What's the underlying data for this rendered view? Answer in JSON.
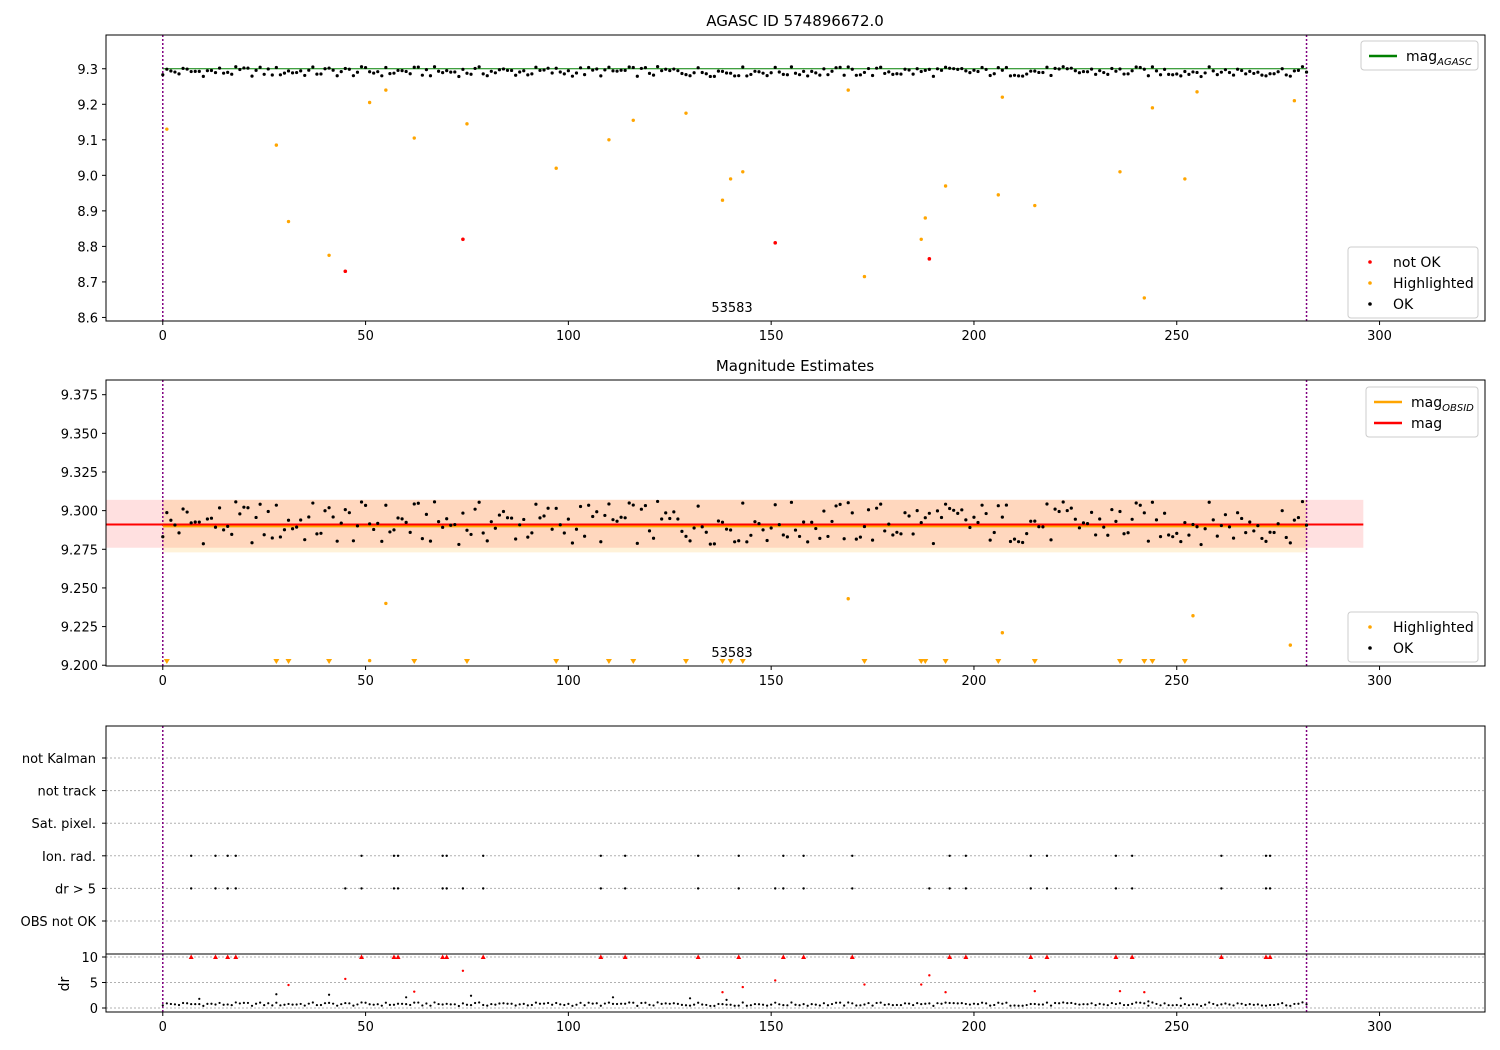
{
  "chart_data": [
    {
      "type": "scatter",
      "title": "AGASC ID 574896672.0",
      "obsid_label": "53583",
      "xlim": [
        -14,
        326
      ],
      "ylim": [
        8.59,
        9.395
      ],
      "xticks": [
        0,
        50,
        100,
        150,
        200,
        250,
        300
      ],
      "yticks": [
        8.6,
        8.7,
        8.8,
        8.9,
        9.0,
        9.1,
        9.2,
        9.3
      ],
      "ytick_labels": [
        "8.6",
        "8.7",
        "8.8",
        "8.9",
        "9.0",
        "9.1",
        "9.2",
        "9.3"
      ],
      "vlines": [
        0,
        282
      ],
      "hlines": [
        {
          "name": "mag_AGASC",
          "y": 9.3,
          "color": "#008000"
        }
      ],
      "legends": [
        {
          "position": "upper right",
          "entries": [
            {
              "label": "mag",
              "sub": "AGASC",
              "kind": "line",
              "color": "#008000"
            }
          ]
        },
        {
          "position": "lower right",
          "entries": [
            {
              "label": "not OK",
              "kind": "dot",
              "color": "#ff0000"
            },
            {
              "label": "Highlighted",
              "kind": "dot",
              "color": "#ffa500"
            },
            {
              "label": "OK",
              "kind": "dot",
              "color": "#000000"
            }
          ]
        }
      ],
      "ok_pattern": {
        "n": 283,
        "base": 9.292,
        "amp": 0.014
      },
      "highlighted": [
        [
          1,
          9.13
        ],
        [
          28,
          9.085
        ],
        [
          31,
          8.87
        ],
        [
          41,
          8.775
        ],
        [
          51,
          9.205
        ],
        [
          55,
          9.24
        ],
        [
          62,
          9.105
        ],
        [
          75,
          9.145
        ],
        [
          97,
          9.02
        ],
        [
          110,
          9.1
        ],
        [
          116,
          9.155
        ],
        [
          129,
          9.175
        ],
        [
          138,
          8.93
        ],
        [
          140,
          8.99
        ],
        [
          143,
          9.01
        ],
        [
          169,
          9.24
        ],
        [
          173,
          8.715
        ],
        [
          187,
          8.82
        ],
        [
          188,
          8.88
        ],
        [
          193,
          8.97
        ],
        [
          206,
          8.945
        ],
        [
          207,
          9.22
        ],
        [
          215,
          8.915
        ],
        [
          236,
          9.01
        ],
        [
          242,
          8.655
        ],
        [
          244,
          9.19
        ],
        [
          252,
          8.99
        ],
        [
          255,
          9.235
        ],
        [
          279,
          9.21
        ]
      ],
      "not_ok": [
        [
          45,
          8.73
        ],
        [
          74,
          8.82
        ],
        [
          151,
          8.81
        ],
        [
          189,
          8.765
        ]
      ]
    },
    {
      "type": "scatter",
      "title": "Magnitude Estimates",
      "obsid_label": "53583",
      "xlim": [
        -14,
        326
      ],
      "ylim": [
        9.1995,
        9.3845
      ],
      "xticks": [
        0,
        50,
        100,
        150,
        200,
        250,
        300
      ],
      "yticks": [
        9.2,
        9.225,
        9.25,
        9.275,
        9.3,
        9.325,
        9.35,
        9.375
      ],
      "ytick_labels": [
        "9.200",
        "9.225",
        "9.250",
        "9.275",
        "9.300",
        "9.325",
        "9.350",
        "9.375"
      ],
      "vlines": [
        0,
        282
      ],
      "mag": 9.291,
      "mag_band": [
        9.276,
        9.307
      ],
      "mag_obsid": 9.29,
      "mag_obsid_band": [
        9.273,
        9.307
      ],
      "legends": [
        {
          "position": "upper right",
          "entries": [
            {
              "label": "mag",
              "sub": "OBSID",
              "kind": "line",
              "color": "#ffa500"
            },
            {
              "label": "mag",
              "kind": "line",
              "color": "#ff0000"
            }
          ]
        },
        {
          "position": "lower right",
          "entries": [
            {
              "label": "Highlighted",
              "kind": "dot",
              "color": "#ffa500"
            },
            {
              "label": "OK",
              "kind": "dot",
              "color": "#000000"
            }
          ]
        }
      ],
      "ok_pattern": {
        "n": 283,
        "base": 9.292,
        "amp": 0.014
      },
      "highlighted": [
        [
          51,
          9.203
        ],
        [
          55,
          9.24
        ],
        [
          169,
          9.243
        ],
        [
          207,
          9.221
        ],
        [
          254,
          9.232
        ],
        [
          278,
          9.213
        ]
      ],
      "below_axis_markers": [
        1,
        28,
        31,
        41,
        62,
        75,
        97,
        110,
        116,
        129,
        138,
        140,
        143,
        173,
        187,
        188,
        193,
        206,
        215,
        236,
        242,
        244,
        252
      ]
    },
    {
      "type": "scatter",
      "xlim": [
        -14,
        326
      ],
      "xticks": [
        0,
        50,
        100,
        150,
        200,
        250,
        300
      ],
      "vlines": [
        0,
        282
      ],
      "flag_rows": [
        "OBS not OK",
        "dr > 5",
        "Ion. rad.",
        "Sat. pixel.",
        "not track",
        "not Kalman"
      ],
      "flags": {
        "ion_rad": [
          7,
          13,
          16,
          18,
          49,
          57,
          58,
          69,
          70,
          79,
          108,
          114,
          132,
          142,
          153,
          158,
          170,
          194,
          198,
          214,
          218,
          235,
          239,
          261,
          272,
          273
        ],
        "dr_gt_5": [
          7,
          13,
          16,
          18,
          45,
          49,
          57,
          58,
          69,
          70,
          74,
          79,
          108,
          114,
          132,
          142,
          151,
          153,
          158,
          170,
          189,
          194,
          198,
          214,
          218,
          235,
          239,
          261,
          272,
          273
        ]
      },
      "dr": {
        "ylabel": "dr",
        "ylim": [
          -0.5,
          11
        ],
        "yticks": [
          0,
          5,
          10
        ],
        "ytick_labels": [
          "0",
          "5",
          "10"
        ],
        "clip": 10,
        "baseline_pattern": {
          "n": 283,
          "base": 0.75,
          "amp": 0.35
        },
        "extra_black": [
          [
            9,
            1.8
          ],
          [
            28,
            2.7
          ],
          [
            41,
            2.6
          ],
          [
            60,
            2.1
          ],
          [
            76,
            2.4
          ],
          [
            111,
            2.1
          ],
          [
            130,
            1.9
          ],
          [
            139,
            1.6
          ],
          [
            243,
            1.3
          ],
          [
            251,
            1.9
          ]
        ],
        "red": [
          [
            7,
            10
          ],
          [
            13,
            10
          ],
          [
            16,
            10
          ],
          [
            18,
            10
          ],
          [
            31,
            4.5
          ],
          [
            45,
            5.7
          ],
          [
            49,
            10
          ],
          [
            57,
            10
          ],
          [
            58,
            10
          ],
          [
            62,
            3.2
          ],
          [
            69,
            10
          ],
          [
            70,
            10
          ],
          [
            74,
            7.3
          ],
          [
            79,
            10
          ],
          [
            108,
            10
          ],
          [
            114,
            10
          ],
          [
            132,
            10
          ],
          [
            138,
            3.1
          ],
          [
            142,
            10
          ],
          [
            143,
            4.1
          ],
          [
            151,
            5.4
          ],
          [
            153,
            10
          ],
          [
            158,
            10
          ],
          [
            170,
            10
          ],
          [
            173,
            4.6
          ],
          [
            187,
            4.6
          ],
          [
            189,
            6.4
          ],
          [
            193,
            3.1
          ],
          [
            194,
            10
          ],
          [
            198,
            10
          ],
          [
            214,
            10
          ],
          [
            215,
            3.3
          ],
          [
            218,
            10
          ],
          [
            235,
            10
          ],
          [
            236,
            3.3
          ],
          [
            239,
            10
          ],
          [
            242,
            3.1
          ],
          [
            261,
            10
          ],
          [
            272,
            10
          ],
          [
            273,
            10
          ]
        ]
      }
    }
  ]
}
